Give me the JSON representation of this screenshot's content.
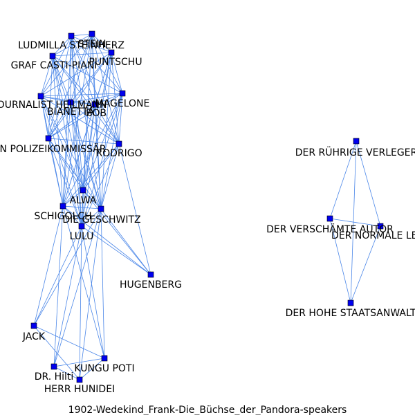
{
  "title": "1902-Wedekind_Frank-Die_Büchse_der_Pandora-speakers",
  "colors": {
    "node_fill": "#0000ee",
    "node_stroke": "#000000",
    "edge": "#4a86e8",
    "label": "#000000",
    "background": "#ffffff"
  },
  "nodes": [
    {
      "id": "stein",
      "label": "STEIN"
    },
    {
      "id": "ludmilla",
      "label": "LUDMILLA STEINHERZ"
    },
    {
      "id": "puntschu",
      "label": "PUNTSCHU"
    },
    {
      "id": "graf",
      "label": "GRAF CASTI-PIANI"
    },
    {
      "id": "journalist",
      "label": "JOURNALIST HEILMANN"
    },
    {
      "id": "magelone",
      "label": "MAGELONE"
    },
    {
      "id": "bianetta",
      "label": "BIANETTA"
    },
    {
      "id": "bob",
      "label": "BOB"
    },
    {
      "id": "polizei",
      "label": "EIN POLIZEIKOMMISSÄR"
    },
    {
      "id": "rodrigo",
      "label": "RODRIGO"
    },
    {
      "id": "alwa",
      "label": "ALWA"
    },
    {
      "id": "schigolch",
      "label": "SCHIGOLCH"
    },
    {
      "id": "geschwitz",
      "label": "DIE GESCHWITZ"
    },
    {
      "id": "lulu",
      "label": "LULU"
    },
    {
      "id": "hugenberg",
      "label": "HUGENBERG"
    },
    {
      "id": "jack",
      "label": "JACK"
    },
    {
      "id": "kungu",
      "label": "KUNGU POTI"
    },
    {
      "id": "hilti",
      "label": "DR. Hilti"
    },
    {
      "id": "hunidei",
      "label": "HERR HUNIDEI"
    },
    {
      "id": "verleger",
      "label": "DER RÜHRIGE VERLEGER"
    },
    {
      "id": "autor",
      "label": "DER VERSCHÄMTE AUTOR"
    },
    {
      "id": "normale",
      "label": "DER NORMALE LESER"
    },
    {
      "id": "staatsanwalt",
      "label": "DER HOHE STAATSANWALT"
    }
  ],
  "edges": [
    [
      "stein",
      "ludmilla"
    ],
    [
      "stein",
      "puntschu"
    ],
    [
      "stein",
      "graf"
    ],
    [
      "stein",
      "journalist"
    ],
    [
      "stein",
      "magelone"
    ],
    [
      "stein",
      "bianetta"
    ],
    [
      "stein",
      "bob"
    ],
    [
      "stein",
      "polizei"
    ],
    [
      "stein",
      "rodrigo"
    ],
    [
      "stein",
      "alwa"
    ],
    [
      "stein",
      "schigolch"
    ],
    [
      "stein",
      "geschwitz"
    ],
    [
      "stein",
      "lulu"
    ],
    [
      "ludmilla",
      "puntschu"
    ],
    [
      "ludmilla",
      "graf"
    ],
    [
      "ludmilla",
      "journalist"
    ],
    [
      "ludmilla",
      "magelone"
    ],
    [
      "ludmilla",
      "bianetta"
    ],
    [
      "ludmilla",
      "bob"
    ],
    [
      "ludmilla",
      "polizei"
    ],
    [
      "ludmilla",
      "rodrigo"
    ],
    [
      "ludmilla",
      "alwa"
    ],
    [
      "ludmilla",
      "schigolch"
    ],
    [
      "ludmilla",
      "geschwitz"
    ],
    [
      "ludmilla",
      "lulu"
    ],
    [
      "puntschu",
      "graf"
    ],
    [
      "puntschu",
      "journalist"
    ],
    [
      "puntschu",
      "magelone"
    ],
    [
      "puntschu",
      "bianetta"
    ],
    [
      "puntschu",
      "bob"
    ],
    [
      "puntschu",
      "polizei"
    ],
    [
      "puntschu",
      "rodrigo"
    ],
    [
      "puntschu",
      "alwa"
    ],
    [
      "puntschu",
      "schigolch"
    ],
    [
      "puntschu",
      "geschwitz"
    ],
    [
      "puntschu",
      "lulu"
    ],
    [
      "graf",
      "journalist"
    ],
    [
      "graf",
      "magelone"
    ],
    [
      "graf",
      "bianetta"
    ],
    [
      "graf",
      "bob"
    ],
    [
      "graf",
      "polizei"
    ],
    [
      "graf",
      "rodrigo"
    ],
    [
      "graf",
      "alwa"
    ],
    [
      "graf",
      "schigolch"
    ],
    [
      "graf",
      "geschwitz"
    ],
    [
      "graf",
      "lulu"
    ],
    [
      "journalist",
      "magelone"
    ],
    [
      "journalist",
      "bianetta"
    ],
    [
      "journalist",
      "bob"
    ],
    [
      "journalist",
      "polizei"
    ],
    [
      "journalist",
      "rodrigo"
    ],
    [
      "journalist",
      "alwa"
    ],
    [
      "journalist",
      "schigolch"
    ],
    [
      "journalist",
      "geschwitz"
    ],
    [
      "journalist",
      "lulu"
    ],
    [
      "magelone",
      "bianetta"
    ],
    [
      "magelone",
      "bob"
    ],
    [
      "magelone",
      "polizei"
    ],
    [
      "magelone",
      "rodrigo"
    ],
    [
      "magelone",
      "alwa"
    ],
    [
      "magelone",
      "schigolch"
    ],
    [
      "magelone",
      "geschwitz"
    ],
    [
      "magelone",
      "lulu"
    ],
    [
      "bianetta",
      "bob"
    ],
    [
      "bianetta",
      "polizei"
    ],
    [
      "bianetta",
      "rodrigo"
    ],
    [
      "bianetta",
      "alwa"
    ],
    [
      "bianetta",
      "schigolch"
    ],
    [
      "bianetta",
      "geschwitz"
    ],
    [
      "bianetta",
      "lulu"
    ],
    [
      "bob",
      "polizei"
    ],
    [
      "bob",
      "rodrigo"
    ],
    [
      "bob",
      "alwa"
    ],
    [
      "bob",
      "schigolch"
    ],
    [
      "bob",
      "geschwitz"
    ],
    [
      "bob",
      "lulu"
    ],
    [
      "polizei",
      "rodrigo"
    ],
    [
      "polizei",
      "alwa"
    ],
    [
      "polizei",
      "schigolch"
    ],
    [
      "polizei",
      "geschwitz"
    ],
    [
      "polizei",
      "lulu"
    ],
    [
      "rodrigo",
      "alwa"
    ],
    [
      "rodrigo",
      "schigolch"
    ],
    [
      "rodrigo",
      "geschwitz"
    ],
    [
      "rodrigo",
      "lulu"
    ],
    [
      "rodrigo",
      "hugenberg"
    ],
    [
      "alwa",
      "schigolch"
    ],
    [
      "alwa",
      "geschwitz"
    ],
    [
      "alwa",
      "lulu"
    ],
    [
      "alwa",
      "hugenberg"
    ],
    [
      "schigolch",
      "geschwitz"
    ],
    [
      "schigolch",
      "lulu"
    ],
    [
      "schigolch",
      "hugenberg"
    ],
    [
      "schigolch",
      "jack"
    ],
    [
      "schigolch",
      "hilti"
    ],
    [
      "schigolch",
      "kungu"
    ],
    [
      "geschwitz",
      "lulu"
    ],
    [
      "geschwitz",
      "hugenberg"
    ],
    [
      "geschwitz",
      "jack"
    ],
    [
      "geschwitz",
      "hilti"
    ],
    [
      "geschwitz",
      "kungu"
    ],
    [
      "geschwitz",
      "hunidei"
    ],
    [
      "lulu",
      "hugenberg"
    ],
    [
      "lulu",
      "jack"
    ],
    [
      "lulu",
      "hilti"
    ],
    [
      "lulu",
      "kungu"
    ],
    [
      "lulu",
      "hunidei"
    ],
    [
      "jack",
      "hunidei"
    ],
    [
      "jack",
      "kungu"
    ],
    [
      "hilti",
      "kungu"
    ],
    [
      "hilti",
      "hunidei"
    ],
    [
      "kungu",
      "hunidei"
    ],
    [
      "verleger",
      "autor"
    ],
    [
      "verleger",
      "normale"
    ],
    [
      "verleger",
      "staatsanwalt"
    ],
    [
      "autor",
      "normale"
    ],
    [
      "autor",
      "staatsanwalt"
    ],
    [
      "normale",
      "staatsanwalt"
    ]
  ]
}
